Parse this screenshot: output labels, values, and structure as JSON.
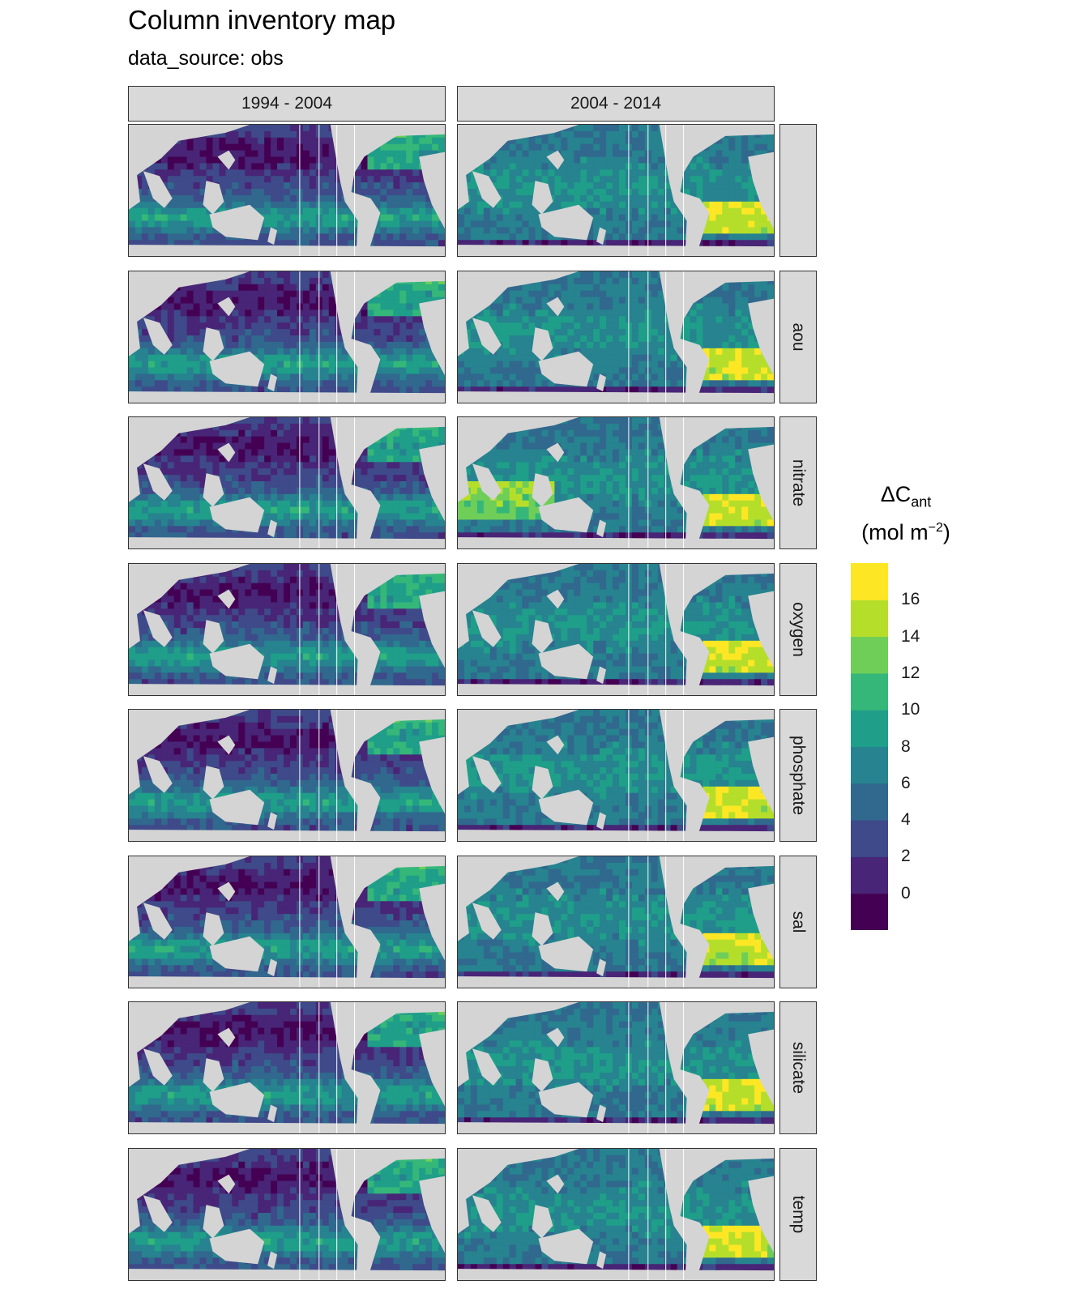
{
  "title": "Column inventory map",
  "subtitle": "data_source: obs",
  "chart_data": {
    "type": "heatmap",
    "title": "Column inventory map",
    "subtitle": "data_source: obs",
    "column_facets": [
      "1994 - 2004",
      "2004 - 2014"
    ],
    "row_facets": [
      "",
      "aou",
      "nitrate",
      "oxygen",
      "phosphate",
      "sal",
      "silicate",
      "temp"
    ],
    "legend": {
      "title_main": "ΔC",
      "title_sub": "ant",
      "title_unit_prefix": "(mol m",
      "title_unit_sup": "−2",
      "title_unit_suffix": ")",
      "breaks": [
        0,
        2,
        4,
        6,
        8,
        10,
        12,
        14,
        16
      ],
      "range": [
        -2,
        18
      ],
      "colors": [
        "#440154",
        "#482576",
        "#3e4a89",
        "#31688e",
        "#26838f",
        "#1f9e89",
        "#35b779",
        "#6ece58",
        "#b5de2b",
        "#fde725"
      ],
      "placement": "right"
    },
    "panels_note": "global ocean maps of column inventory; 2 columns x 8 rows",
    "land_color": "#d4d4d4"
  }
}
